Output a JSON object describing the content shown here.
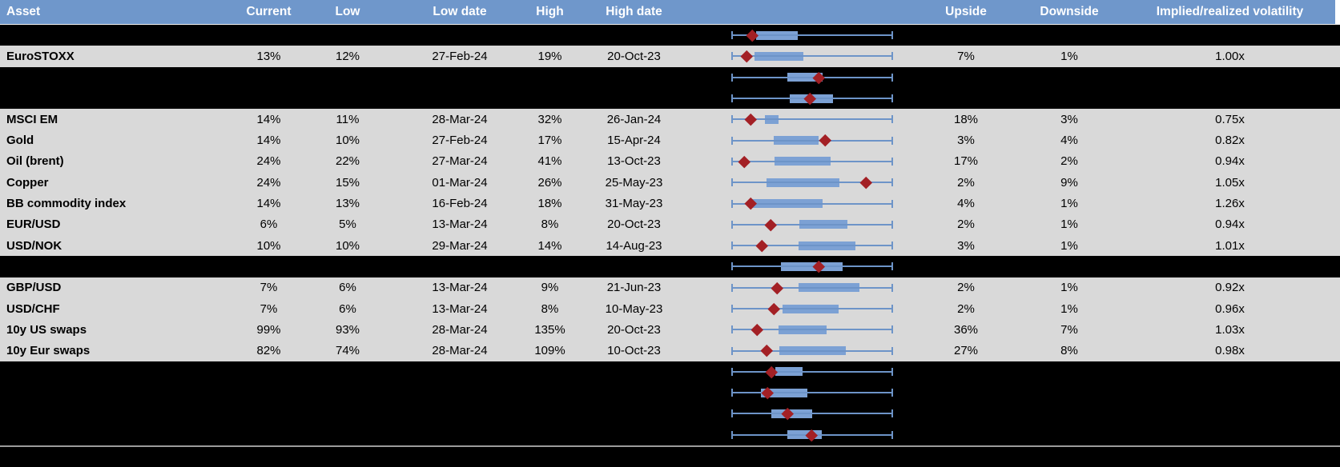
{
  "palette": {
    "header_bg": "#6f97cb",
    "header_text": "#ffffff",
    "row_gray": "#d9d9d9",
    "row_black": "#000000",
    "box_blue": "#7ca1d4",
    "whisker_blue": "#6d94c8",
    "marker_red": "#a32025",
    "divider_gray": "#9b9b9b"
  },
  "header": {
    "asset": "Asset",
    "current": "Current",
    "low": "Low",
    "low_date": "Low date",
    "high": "High",
    "high_date": "High date",
    "upside": "Upside",
    "downside": "Downside",
    "implied": "Implied/realized volatility"
  },
  "chart_data": {
    "type": "table",
    "note": "Each row shows a normalized min-max volatility range bar (whisker 0-1), an inner box range, and a red diamond marking current level.",
    "columns": [
      "Asset",
      "Current",
      "Low",
      "Low date",
      "High",
      "High date",
      "Upside",
      "Downside",
      "Implied/realized volatility"
    ]
  },
  "rows": [
    {
      "bg": "black",
      "asset": "",
      "current": "",
      "low": "",
      "low_date": "",
      "high": "",
      "high_date": "",
      "upside": "",
      "downside": "",
      "implied": "",
      "plot": {
        "box_lo": 0.153,
        "box_hi": 0.411,
        "marker": 0.129
      }
    },
    {
      "bg": "gray",
      "asset": "EuroSTOXX",
      "current": "13%",
      "low": "12%",
      "low_date": "27-Feb-24",
      "high": "19%",
      "high_date": "20-Oct-23",
      "upside": "7%",
      "downside": "1%",
      "implied": "1.00x",
      "plot": {
        "box_lo": 0.144,
        "box_hi": 0.446,
        "marker": 0.094
      }
    },
    {
      "bg": "black",
      "asset": "",
      "current": "",
      "low": "",
      "low_date": "",
      "high": "",
      "high_date": "",
      "upside": "",
      "downside": "",
      "implied": "",
      "plot": {
        "box_lo": 0.347,
        "box_hi": 0.564,
        "marker": 0.54
      }
    },
    {
      "bg": "black",
      "asset": "",
      "current": "",
      "low": "",
      "low_date": "",
      "high": "",
      "high_date": "",
      "upside": "",
      "downside": "",
      "implied": "",
      "plot": {
        "box_lo": 0.361,
        "box_hi": 0.629,
        "marker": 0.485
      }
    },
    {
      "bg": "gray",
      "asset": "MSCI EM",
      "current": "14%",
      "low": "11%",
      "low_date": "28-Mar-24",
      "high": "32%",
      "high_date": "26-Jan-24",
      "upside": "18%",
      "downside": "3%",
      "implied": "0.75x",
      "plot": {
        "box_lo": 0.208,
        "box_hi": 0.292,
        "marker": 0.119
      }
    },
    {
      "bg": "gray",
      "asset": "Gold",
      "current": "14%",
      "low": "10%",
      "low_date": "27-Feb-24",
      "high": "17%",
      "high_date": "15-Apr-24",
      "upside": "3%",
      "downside": "4%",
      "implied": "0.82x",
      "plot": {
        "box_lo": 0.262,
        "box_hi": 0.54,
        "marker": 0.579
      }
    },
    {
      "bg": "gray",
      "asset": "Oil (brent)",
      "current": "24%",
      "low": "22%",
      "low_date": "27-Mar-24",
      "high": "41%",
      "high_date": "13-Oct-23",
      "upside": "17%",
      "downside": "2%",
      "implied": "0.94x",
      "plot": {
        "box_lo": 0.267,
        "box_hi": 0.614,
        "marker": 0.079
      }
    },
    {
      "bg": "gray",
      "asset": "Copper",
      "current": "24%",
      "low": "15%",
      "low_date": "01-Mar-24",
      "high": "26%",
      "high_date": "25-May-23",
      "upside": "2%",
      "downside": "9%",
      "implied": "1.05x",
      "plot": {
        "box_lo": 0.218,
        "box_hi": 0.668,
        "marker": 0.832
      }
    },
    {
      "bg": "gray",
      "asset": "BB commodity index",
      "current": "14%",
      "low": "13%",
      "low_date": "16-Feb-24",
      "high": "18%",
      "high_date": "31-May-23",
      "upside": "4%",
      "downside": "1%",
      "implied": "1.26x",
      "plot": {
        "box_lo": 0.124,
        "box_hi": 0.564,
        "marker": 0.119
      }
    },
    {
      "bg": "gray",
      "asset": "EUR/USD",
      "current": "6%",
      "low": "5%",
      "low_date": "13-Mar-24",
      "high": "8%",
      "high_date": "20-Oct-23",
      "upside": "2%",
      "downside": "1%",
      "implied": "0.94x",
      "plot": {
        "box_lo": 0.421,
        "box_hi": 0.718,
        "marker": 0.243
      }
    },
    {
      "bg": "gray",
      "asset": "USD/NOK",
      "current": "10%",
      "low": "10%",
      "low_date": "29-Mar-24",
      "high": "14%",
      "high_date": "14-Aug-23",
      "upside": "3%",
      "downside": "1%",
      "implied": "1.01x",
      "plot": {
        "box_lo": 0.416,
        "box_hi": 0.767,
        "marker": 0.188
      }
    },
    {
      "bg": "black",
      "asset": "",
      "current": "",
      "low": "",
      "low_date": "",
      "high": "",
      "high_date": "",
      "upside": "",
      "downside": "",
      "implied": "",
      "plot": {
        "box_lo": 0.307,
        "box_hi": 0.688,
        "marker": 0.54
      }
    },
    {
      "bg": "gray",
      "asset": "GBP/USD",
      "current": "7%",
      "low": "6%",
      "low_date": "13-Mar-24",
      "high": "9%",
      "high_date": "21-Jun-23",
      "upside": "2%",
      "downside": "1%",
      "implied": "0.92x",
      "plot": {
        "box_lo": 0.416,
        "box_hi": 0.792,
        "marker": 0.282
      }
    },
    {
      "bg": "gray",
      "asset": "USD/CHF",
      "current": "7%",
      "low": "6%",
      "low_date": "13-Mar-24",
      "high": "8%",
      "high_date": "10-May-23",
      "upside": "2%",
      "downside": "1%",
      "implied": "0.96x",
      "plot": {
        "box_lo": 0.317,
        "box_hi": 0.663,
        "marker": 0.262
      }
    },
    {
      "bg": "gray",
      "asset": "10y US swaps",
      "current": "99%",
      "low": "93%",
      "low_date": "28-Mar-24",
      "high": "135%",
      "high_date": "20-Oct-23",
      "upside": "36%",
      "downside": "7%",
      "implied": "1.03x",
      "plot": {
        "box_lo": 0.292,
        "box_hi": 0.589,
        "marker": 0.158
      }
    },
    {
      "bg": "gray",
      "asset": "10y Eur swaps",
      "current": "82%",
      "low": "74%",
      "low_date": "28-Mar-24",
      "high": "109%",
      "high_date": "10-Oct-23",
      "upside": "27%",
      "downside": "8%",
      "implied": "0.98x",
      "plot": {
        "box_lo": 0.297,
        "box_hi": 0.708,
        "marker": 0.218
      }
    },
    {
      "bg": "black",
      "asset": "",
      "current": "",
      "low": "",
      "low_date": "",
      "high": "",
      "high_date": "",
      "upside": "",
      "downside": "",
      "implied": "",
      "plot": {
        "box_lo": 0.272,
        "box_hi": 0.441,
        "marker": 0.248
      }
    },
    {
      "bg": "black",
      "asset": "",
      "current": "",
      "low": "",
      "low_date": "",
      "high": "",
      "high_date": "",
      "upside": "",
      "downside": "",
      "implied": "",
      "plot": {
        "box_lo": 0.183,
        "box_hi": 0.47,
        "marker": 0.223
      }
    },
    {
      "bg": "black",
      "asset": "",
      "current": "",
      "low": "",
      "low_date": "",
      "high": "",
      "high_date": "",
      "upside": "",
      "downside": "",
      "implied": "",
      "plot": {
        "box_lo": 0.248,
        "box_hi": 0.5,
        "marker": 0.347
      }
    },
    {
      "bg": "black",
      "asset": "",
      "current": "",
      "low": "",
      "low_date": "",
      "high": "",
      "high_date": "",
      "upside": "",
      "downside": "",
      "implied": "",
      "plot": {
        "box_lo": 0.347,
        "box_hi": 0.559,
        "marker": 0.495
      }
    }
  ]
}
